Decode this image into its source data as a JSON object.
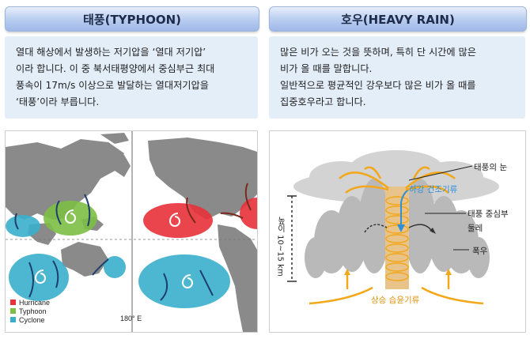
{
  "typhoon": {
    "title": "태풍(TYPHOON)",
    "description": "열대 해상에서 발생하는 저기압을 ‘열대 저기압’\n이라 합니다. 이 중 북서태평양에서 중심부근 최대\n풍속이 17m/s 이상으로 발달하는 열대저기압을\n‘태풍’이라 부릅니다.",
    "legend": [
      {
        "label": "Hurricane",
        "color": "#e8313a"
      },
      {
        "label": "Typhoon",
        "color": "#7cbf44"
      },
      {
        "label": "Cyclone",
        "color": "#3aaecb"
      }
    ],
    "axis_label": "180° E"
  },
  "heavy_rain": {
    "title": "호우(HEAVY RAIN)",
    "description": "많은 비가 오는 것을 뜻하며, 특히 단 시간에 많은\n비가 올 때를 말합니다.\n일반적으로 평균적인 강우보다 많은 비가 올 때를\n집중호우라고 합니다.",
    "labels": {
      "eye": "태풍의 눈",
      "downdraft": "하강 건조기류",
      "eyewall": "태풍 중심부\n둘레",
      "heavy_rain": "폭우",
      "updraft": "상승 습윤기류",
      "height": "높이 10~15 km"
    },
    "colors": {
      "cloud": "#bdbdbd",
      "updraft": "#f3a71b",
      "downdraft": "#2f8fd8"
    }
  }
}
